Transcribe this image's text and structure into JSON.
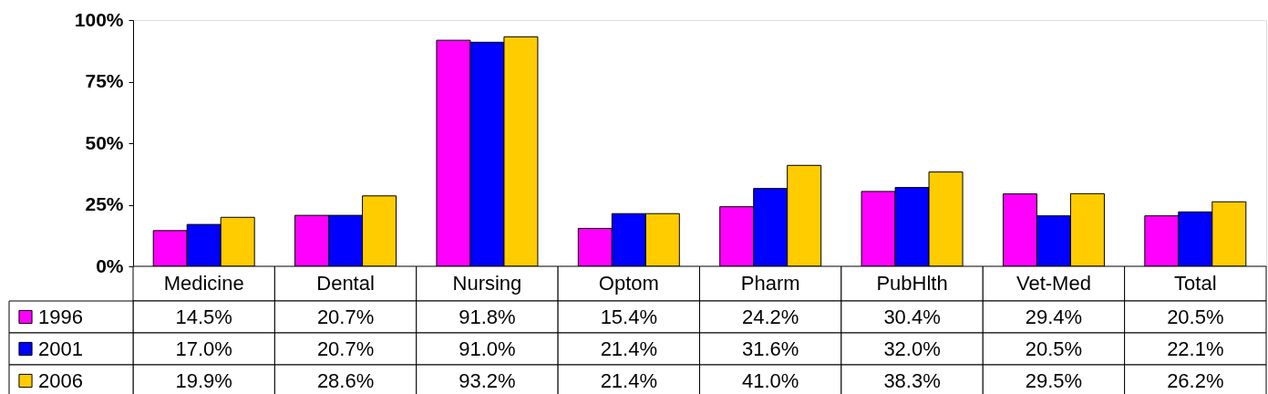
{
  "chart_data": {
    "type": "bar",
    "categories": [
      "Medicine",
      "Dental",
      "Nursing",
      "Optom",
      "Pharm",
      "PubHlth",
      "Vet-Med",
      "Total"
    ],
    "series": [
      {
        "name": "1996",
        "color": "#ff00ff",
        "values": [
          14.5,
          20.7,
          91.8,
          15.4,
          24.2,
          30.4,
          29.4,
          20.5
        ],
        "value_labels": [
          "14.5%",
          "20.7%",
          "91.8%",
          "15.4%",
          "24.2%",
          "30.4%",
          "29.4%",
          "20.5%"
        ]
      },
      {
        "name": "2001",
        "color": "#0000ff",
        "values": [
          17.0,
          20.7,
          91.0,
          21.4,
          31.6,
          32.0,
          20.5,
          22.1
        ],
        "value_labels": [
          "17.0%",
          "20.7%",
          "91.0%",
          "21.4%",
          "31.6%",
          "32.0%",
          "20.5%",
          "22.1%"
        ]
      },
      {
        "name": "2006",
        "color": "#ffcc00",
        "values": [
          19.9,
          28.6,
          93.2,
          21.4,
          41.0,
          38.3,
          29.5,
          26.2
        ],
        "value_labels": [
          "19.9%",
          "28.6%",
          "93.2%",
          "21.4%",
          "41.0%",
          "38.3%",
          "29.5%",
          "26.2%"
        ]
      }
    ],
    "ylim": [
      0,
      100
    ],
    "yticks": [
      {
        "value": 0,
        "label": "0%"
      },
      {
        "value": 25,
        "label": "25%"
      },
      {
        "value": 50,
        "label": "50%"
      },
      {
        "value": 75,
        "label": "75%"
      },
      {
        "value": 100,
        "label": "100%"
      }
    ],
    "grid": false,
    "legend": "bottom left"
  }
}
